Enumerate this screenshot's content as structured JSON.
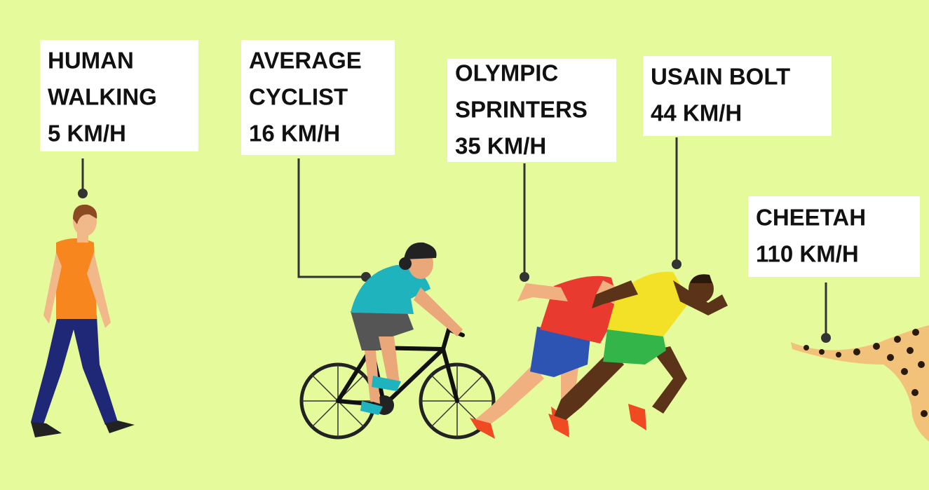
{
  "items": [
    {
      "lines": [
        "HUMAN",
        "WALKING",
        "5 KM/H"
      ]
    },
    {
      "lines": [
        "AVERAGE",
        "CYCLIST",
        "16 KM/H"
      ]
    },
    {
      "lines": [
        "OLYMPIC",
        "SPRINTERS",
        "35 KM/H"
      ]
    },
    {
      "lines": [
        "USAIN BOLT",
        "44 KM/H"
      ]
    },
    {
      "lines": [
        "CHEETAH",
        "110 KM/H"
      ]
    }
  ]
}
